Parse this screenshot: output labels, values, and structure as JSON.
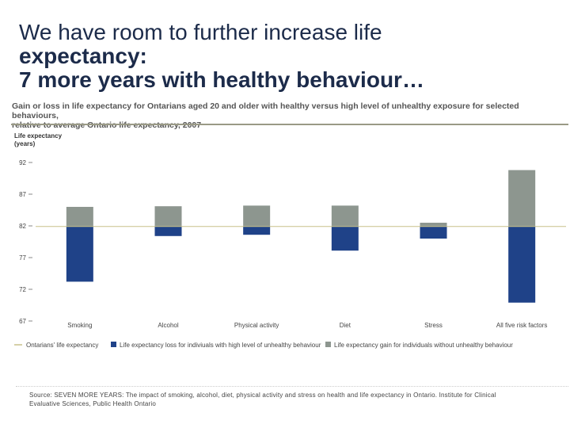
{
  "slide": {
    "title_lines": [
      "We have room to further increase life",
      "expectancy:",
      "7 more years with healthy behaviour…"
    ],
    "subtitle_lines": [
      "Gain or loss in life expectancy for Ontarians aged 20 and older with healthy versus high level of unhealthy exposure for selected behaviours,",
      "relative to average Ontario life expectancy, 2007"
    ],
    "source_lines": [
      "Source: SEVEN MORE YEARS: The impact of smoking, alcohol, diet, physical activity and stress on health and life expectancy in Ontario. Institute for Clinical",
      "Evaluative Sciences, Public Health Ontario"
    ]
  },
  "colors": {
    "title": "#1c2b4a",
    "loss": "#1f4288",
    "gain": "#8d968f",
    "baseline": "#c9c08a"
  },
  "chart_data": {
    "type": "bar",
    "ylabel_lines": [
      "Life expectancy",
      "(years)"
    ],
    "ylim": [
      67,
      92
    ],
    "yticks": [
      92,
      87,
      82,
      77,
      72,
      67
    ],
    "baseline": 81.9,
    "categories": [
      "Smoking",
      "Alcohol",
      "Physical activity",
      "Diet",
      "Stress",
      "All five risk factors"
    ],
    "series": [
      {
        "name": "Life expectancy loss for indiviuals with high level of unhealthy behaviour",
        "from": 81.9,
        "values": [
          73.2,
          80.4,
          80.6,
          78.1,
          80.0,
          69.9
        ]
      },
      {
        "name": "Life expectancy gain for individuals without unhealthy behaviour",
        "from": 81.9,
        "values": [
          85.0,
          85.1,
          85.2,
          85.2,
          82.5,
          90.8
        ]
      }
    ],
    "legend": [
      {
        "label": "Ontarians' life expectancy",
        "kind": "line",
        "color_key": "baseline"
      },
      {
        "label": "Life expectancy loss for indiviuals with high level of unhealthy behaviour",
        "kind": "box",
        "color_key": "loss"
      },
      {
        "label": "Life expectancy gain for individuals without unhealthy behaviour",
        "kind": "box",
        "color_key": "gain"
      }
    ]
  }
}
